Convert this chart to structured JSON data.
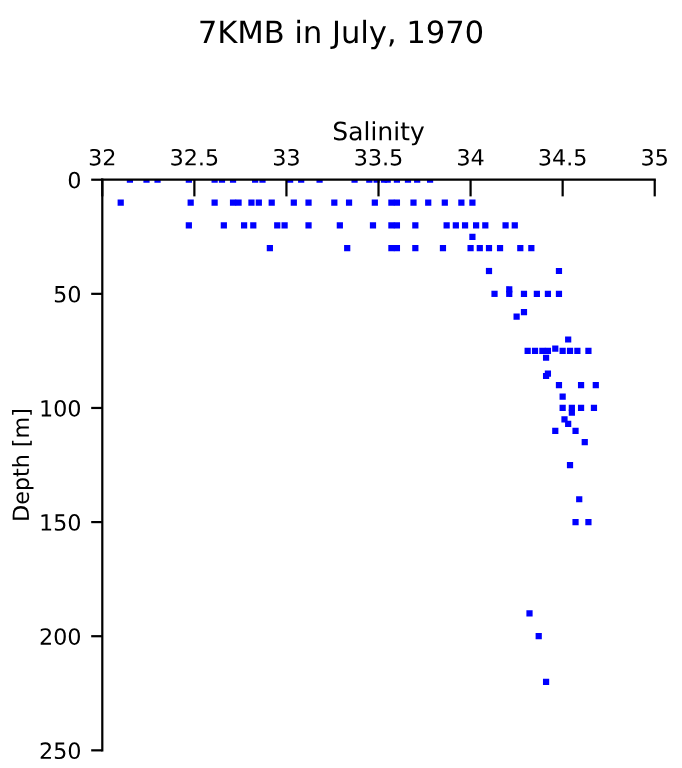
{
  "chart_data": {
    "type": "scatter",
    "title": "7KMB in July, 1970",
    "xlabel": "Salinity",
    "ylabel": "Depth [m]",
    "xlim": [
      32,
      35
    ],
    "xticks": [
      32,
      32.5,
      33,
      33.5,
      34,
      34.5,
      35
    ],
    "ylim": [
      250,
      0
    ],
    "yticks": [
      0,
      50,
      100,
      150,
      200,
      250
    ],
    "marker": "square",
    "grid": false,
    "series": [
      {
        "color": "#0000ff",
        "x": [
          32.15,
          32.24,
          32.3,
          32.47,
          32.61,
          32.65,
          32.71,
          32.83,
          32.87,
          33.02,
          33.08,
          33.18,
          33.37,
          33.45,
          33.49,
          33.53,
          33.55,
          33.6,
          33.66,
          33.71,
          33.78,
          32.1,
          32.48,
          32.61,
          32.71,
          32.74,
          32.81,
          32.85,
          32.92,
          33.04,
          33.12,
          33.26,
          33.34,
          33.48,
          33.57,
          33.6,
          33.69,
          33.77,
          33.86,
          33.95,
          34.01,
          32.47,
          32.66,
          32.77,
          32.82,
          32.95,
          32.99,
          33.12,
          33.29,
          33.47,
          33.57,
          33.6,
          33.7,
          33.87,
          33.92,
          33.97,
          34.03,
          34.08,
          34.19,
          34.24,
          32.91,
          33.33,
          33.57,
          33.6,
          33.7,
          33.85,
          34.0,
          34.05,
          34.1,
          34.16,
          34.27,
          34.33,
          34.01,
          34.1,
          34.48,
          34.13,
          34.21,
          34.29,
          34.36,
          34.42,
          34.48,
          34.21,
          34.29,
          34.25,
          34.53,
          34.31,
          34.35,
          34.39,
          34.41,
          34.42,
          34.46,
          34.5,
          34.54,
          34.58,
          34.64,
          34.42,
          34.41,
          34.48,
          34.6,
          34.68,
          34.5,
          34.5,
          34.55,
          34.6,
          34.55,
          34.67,
          34.51,
          34.53,
          34.46,
          34.57,
          34.62,
          34.54,
          34.59,
          34.57,
          34.64,
          34.32,
          34.37,
          34.41
        ],
        "values": [
          0,
          0,
          0,
          0,
          0,
          0,
          0,
          0,
          0,
          0,
          0,
          0,
          0,
          0,
          0,
          0,
          0,
          0,
          0,
          0,
          0,
          10,
          10,
          10,
          10,
          10,
          10,
          10,
          10,
          10,
          10,
          10,
          10,
          10,
          10,
          10,
          10,
          10,
          10,
          10,
          10,
          20,
          20,
          20,
          20,
          20,
          20,
          20,
          20,
          20,
          20,
          20,
          20,
          20,
          20,
          20,
          20,
          20,
          20,
          20,
          30,
          30,
          30,
          30,
          30,
          30,
          30,
          30,
          30,
          30,
          30,
          30,
          25,
          40,
          40,
          50,
          50,
          50,
          50,
          50,
          50,
          48,
          58,
          60,
          70,
          75,
          75,
          75,
          78,
          75,
          74,
          75,
          75,
          75,
          75,
          85,
          86,
          90,
          90,
          90,
          95,
          100,
          100,
          100,
          102,
          100,
          105,
          107,
          110,
          110,
          115,
          125,
          140,
          150,
          150,
          190,
          200,
          220
        ]
      }
    ]
  }
}
